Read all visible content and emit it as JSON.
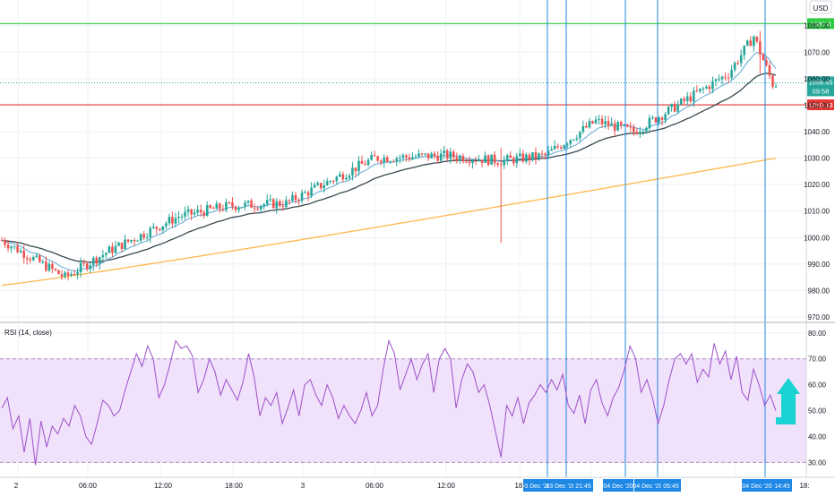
{
  "colors": {
    "up": "#26a69a",
    "down": "#ef5350",
    "ema_fast": "#5fa8d3",
    "ema_mid": "#37474f",
    "ema_slow": "#ffb74d",
    "resistance": "#2ecc40",
    "support": "#e53935",
    "rsi": "#9c4fc9",
    "rsi_band": "#f1e2fb",
    "marker": "#1e88e5",
    "arrow": "#19d3d3",
    "grid": "#eef0f3"
  },
  "chart_data": {
    "type": "candlestick",
    "price_axis": {
      "currency": "USD",
      "ticks": [
        "970.00",
        "980.00",
        "990.00",
        "1000.00",
        "1010.00",
        "1020.00",
        "1030.00",
        "1040.00",
        "1050.00",
        "1060.00",
        "1070.00",
        "1080.00"
      ],
      "range": [
        969,
        1087
      ]
    },
    "time_axis": {
      "ticks": [
        "2",
        "06:00",
        "12:00",
        "18:00",
        "3",
        "06:00",
        "12:00",
        "18:",
        "18:"
      ]
    },
    "levels": [
      {
        "name": "resistance",
        "value": 1080.8,
        "label": "1080.8"
      },
      {
        "name": "support",
        "value": 1050.13,
        "label": "1050.13"
      }
    ],
    "last_price": {
      "value": 1058.45,
      "label": "1058.45",
      "countdown": "09:58"
    },
    "candles_summary": {
      "start_price": 999,
      "low": 980,
      "high": 1078,
      "end_price": 1058.45,
      "waypoints": [
        [
          0,
          999
        ],
        [
          20,
          985
        ],
        [
          34,
          995
        ],
        [
          56,
          1008
        ],
        [
          72,
          1012
        ],
        [
          90,
          1013
        ],
        [
          118,
          1030
        ],
        [
          140,
          1031
        ],
        [
          158,
          1029
        ],
        [
          172,
          1031
        ],
        [
          188,
          1044
        ],
        [
          200,
          1040
        ],
        [
          214,
          1050
        ],
        [
          230,
          1062
        ],
        [
          238,
          1076
        ],
        [
          244,
          1058
        ]
      ]
    },
    "rsi": {
      "title": "RSI (14, close)",
      "ticks": [
        "30.00",
        "40.00",
        "50.00",
        "60.00",
        "70.00",
        "80.00"
      ],
      "range": [
        26,
        82
      ],
      "band": [
        30,
        70
      ],
      "values": [
        51,
        55,
        43,
        48,
        34,
        47,
        29,
        46,
        36,
        44,
        41,
        47,
        44,
        52,
        48,
        40,
        37,
        45,
        54,
        52,
        48,
        50,
        58,
        65,
        72,
        67,
        75,
        70,
        55,
        60,
        68,
        77,
        74,
        75,
        71,
        57,
        62,
        70,
        65,
        56,
        62,
        58,
        54,
        61,
        72,
        63,
        48,
        55,
        52,
        57,
        45,
        51,
        58,
        48,
        60,
        62,
        56,
        52,
        60,
        55,
        47,
        52,
        48,
        45,
        50,
        57,
        48,
        52,
        66,
        77,
        72,
        58,
        64,
        70,
        62,
        68,
        72,
        57,
        70,
        74,
        70,
        51,
        62,
        68,
        65,
        57,
        60,
        52,
        42,
        32,
        52,
        48,
        55,
        45,
        53,
        56,
        60,
        57,
        62,
        58,
        64,
        52,
        49,
        56,
        45,
        58,
        62,
        53,
        48,
        55,
        59,
        66,
        75,
        70,
        57,
        62,
        55,
        45,
        52,
        62,
        70,
        72,
        68,
        72,
        61,
        66,
        63,
        76,
        68,
        73,
        62,
        71,
        57,
        54,
        66,
        60,
        52,
        56,
        50
      ]
    },
    "time_markers": [
      {
        "label": "03 Dec '20"
      },
      {
        "label": "03 Dec '20"
      },
      {
        "label": "21:45"
      },
      {
        "label": "04 Dec '20"
      },
      {
        "label": "04 Dec '20"
      },
      {
        "label": "05:45"
      },
      {
        "label": "04 Dec '20"
      },
      {
        "label": "14:45"
      }
    ]
  }
}
